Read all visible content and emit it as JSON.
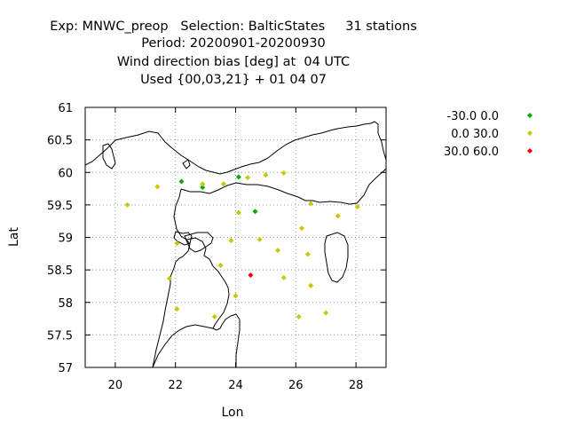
{
  "chart_data": {
    "type": "scatter",
    "title_lines": [
      "Exp: MNWC_preop   Selection: BalticStates     31 stations",
      "Period: 20200901-20200930",
      "Wind direction bias [deg] at  04 UTC",
      "Used {00,03,21} + 01 04 07"
    ],
    "xlabel": "Lon",
    "ylabel": "Lat",
    "xlim": [
      19,
      29
    ],
    "ylim": [
      57,
      61
    ],
    "xticks": [
      20,
      22,
      24,
      26,
      28
    ],
    "yticks": [
      57,
      57.5,
      58,
      58.5,
      59,
      59.5,
      60,
      60.5,
      61
    ],
    "xtick_labels": [
      "20",
      "22",
      "24",
      "26",
      "28"
    ],
    "ytick_labels": [
      "57",
      "57.5",
      "58",
      "58.5",
      "59",
      "59.5",
      "60",
      "60.5",
      "61"
    ],
    "grid": true,
    "legend_position": "top-right",
    "series": [
      {
        "name": "-30.0 0.0",
        "color": "#00aa00",
        "points": [
          [
            22.2,
            59.86
          ],
          [
            22.9,
            59.77
          ],
          [
            24.1,
            59.93
          ],
          [
            24.65,
            59.4
          ]
        ]
      },
      {
        "name": "0.0 30.0",
        "color": "#c8c800",
        "points": [
          [
            20.4,
            59.5
          ],
          [
            21.4,
            59.78
          ],
          [
            22.9,
            59.82
          ],
          [
            23.6,
            59.82
          ],
          [
            24.4,
            59.92
          ],
          [
            25.0,
            59.96
          ],
          [
            25.6,
            59.99
          ],
          [
            26.5,
            59.52
          ],
          [
            28.05,
            59.47
          ],
          [
            27.4,
            59.33
          ],
          [
            24.1,
            59.38
          ],
          [
            26.2,
            59.14
          ],
          [
            22.05,
            58.91
          ],
          [
            23.85,
            58.95
          ],
          [
            24.8,
            58.97
          ],
          [
            25.4,
            58.8
          ],
          [
            26.4,
            58.74
          ],
          [
            23.5,
            58.57
          ],
          [
            21.8,
            58.37
          ],
          [
            25.6,
            58.38
          ],
          [
            26.5,
            58.26
          ],
          [
            24.0,
            58.1
          ],
          [
            22.05,
            57.9
          ],
          [
            23.3,
            57.78
          ],
          [
            26.1,
            57.78
          ],
          [
            27.0,
            57.84
          ]
        ]
      },
      {
        "name": "30.0 60.0",
        "color": "#ee0000",
        "points": [
          [
            24.5,
            58.42
          ]
        ]
      }
    ]
  }
}
